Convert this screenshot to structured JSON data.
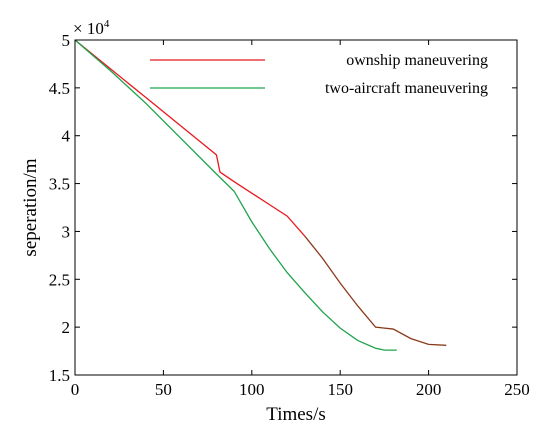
{
  "chart_data": {
    "type": "line",
    "title": "",
    "xlabel": "Times/s",
    "ylabel": "seperation/m",
    "exponent_label": "× 10",
    "exponent_power": "4",
    "xlim": [
      0,
      250
    ],
    "ylim": [
      1.5,
      5
    ],
    "xticks": [
      "0",
      "50",
      "100",
      "150",
      "200",
      "250"
    ],
    "yticks": [
      "1.5",
      "2",
      "2.5",
      "3",
      "3.5",
      "4",
      "4.5",
      "5"
    ],
    "grid": false,
    "legend_position": "top",
    "series": [
      {
        "name": "ownship maneuvering",
        "color": "#e8191f",
        "color_tail": "#8b3a1a",
        "points": [
          [
            0,
            5.0
          ],
          [
            20,
            4.7
          ],
          [
            40,
            4.4
          ],
          [
            60,
            4.1
          ],
          [
            80,
            3.8
          ],
          [
            82,
            3.62
          ],
          [
            90,
            3.52
          ],
          [
            100,
            3.4
          ],
          [
            110,
            3.28
          ],
          [
            120,
            3.16
          ],
          [
            130,
            2.95
          ],
          [
            140,
            2.72
          ],
          [
            150,
            2.46
          ],
          [
            160,
            2.22
          ],
          [
            170,
            2.0
          ],
          [
            180,
            1.98
          ],
          [
            190,
            1.88
          ],
          [
            200,
            1.82
          ],
          [
            210,
            1.81
          ]
        ],
        "tail_start_x": 130
      },
      {
        "name": "two-aircraft maneuvering",
        "color": "#1fa34d",
        "points": [
          [
            0,
            5.0
          ],
          [
            20,
            4.68
          ],
          [
            40,
            4.34
          ],
          [
            60,
            3.97
          ],
          [
            80,
            3.6
          ],
          [
            90,
            3.42
          ],
          [
            100,
            3.1
          ],
          [
            110,
            2.82
          ],
          [
            120,
            2.57
          ],
          [
            130,
            2.36
          ],
          [
            140,
            2.16
          ],
          [
            150,
            1.99
          ],
          [
            160,
            1.86
          ],
          [
            170,
            1.78
          ],
          [
            175,
            1.76
          ],
          [
            182,
            1.76
          ]
        ]
      }
    ]
  }
}
